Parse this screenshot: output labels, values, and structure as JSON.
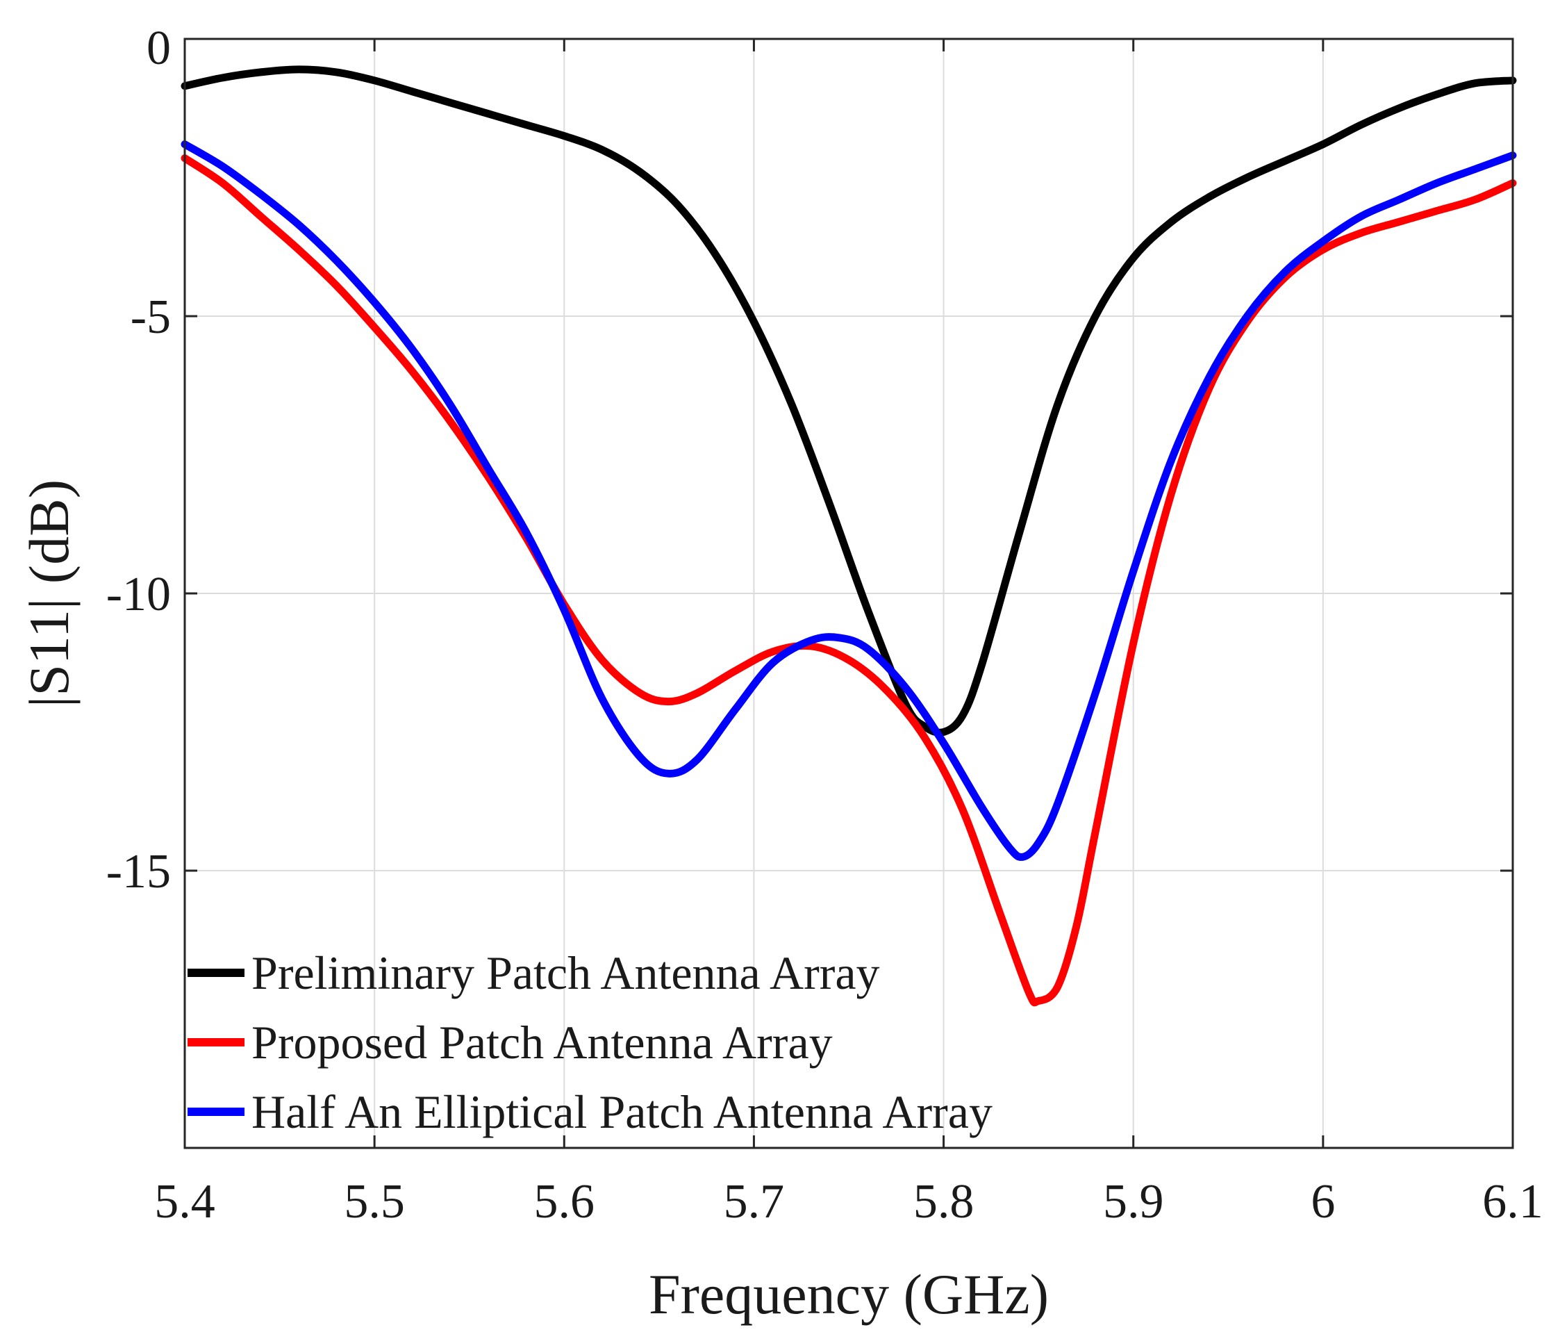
{
  "chart_data": {
    "type": "line",
    "title": "",
    "xlabel": "Frequency (GHz)",
    "ylabel": "|S11| (dB)",
    "xlim": [
      5.4,
      6.1
    ],
    "ylim": [
      -20,
      0
    ],
    "xticks": [
      5.4,
      5.5,
      5.6,
      5.7,
      5.8,
      5.9,
      6.0,
      6.1
    ],
    "xtick_labels": [
      "5.4",
      "5.5",
      "5.6",
      "5.7",
      "5.8",
      "5.9",
      "6",
      "6.1"
    ],
    "yticks": [
      0,
      -5,
      -10,
      -15
    ],
    "ytick_labels": [
      "0",
      "-5",
      "-10",
      "-15"
    ],
    "grid": true,
    "legend_position": "bottom-left",
    "series": [
      {
        "name": "Preliminary Patch Antenna Array",
        "color": "#000000",
        "x": [
          5.4,
          5.42,
          5.44,
          5.46,
          5.48,
          5.5,
          5.52,
          5.54,
          5.56,
          5.58,
          5.6,
          5.62,
          5.64,
          5.66,
          5.68,
          5.7,
          5.72,
          5.74,
          5.76,
          5.78,
          5.79,
          5.8,
          5.81,
          5.82,
          5.84,
          5.86,
          5.88,
          5.9,
          5.92,
          5.94,
          5.96,
          5.98,
          6.0,
          6.02,
          6.04,
          6.06,
          6.08,
          6.1
        ],
        "y": [
          -0.85,
          -0.7,
          -0.6,
          -0.55,
          -0.6,
          -0.75,
          -0.95,
          -1.15,
          -1.35,
          -1.55,
          -1.75,
          -2.0,
          -2.4,
          -3.0,
          -3.9,
          -5.1,
          -6.6,
          -8.4,
          -10.3,
          -12.0,
          -12.4,
          -12.5,
          -12.2,
          -11.3,
          -8.9,
          -6.6,
          -5.0,
          -3.95,
          -3.3,
          -2.85,
          -2.5,
          -2.2,
          -1.9,
          -1.55,
          -1.25,
          -1.0,
          -0.8,
          -0.75
        ]
      },
      {
        "name": "Proposed Patch Antenna Array",
        "color": "#ff0000",
        "x": [
          5.4,
          5.42,
          5.44,
          5.46,
          5.48,
          5.5,
          5.52,
          5.54,
          5.56,
          5.58,
          5.6,
          5.62,
          5.64,
          5.655,
          5.67,
          5.69,
          5.71,
          5.73,
          5.75,
          5.77,
          5.79,
          5.81,
          5.83,
          5.845,
          5.85,
          5.86,
          5.87,
          5.88,
          5.9,
          5.92,
          5.94,
          5.96,
          5.98,
          6.0,
          6.02,
          6.04,
          6.06,
          6.08,
          6.1
        ],
        "y": [
          -2.15,
          -2.6,
          -3.2,
          -3.8,
          -4.45,
          -5.2,
          -6.0,
          -6.9,
          -7.9,
          -9.0,
          -10.2,
          -11.2,
          -11.8,
          -11.95,
          -11.8,
          -11.4,
          -11.05,
          -10.95,
          -11.2,
          -11.75,
          -12.6,
          -13.9,
          -15.8,
          -17.2,
          -17.35,
          -17.1,
          -16.0,
          -14.3,
          -10.9,
          -8.2,
          -6.3,
          -5.1,
          -4.3,
          -3.8,
          -3.5,
          -3.3,
          -3.1,
          -2.9,
          -2.6
        ]
      },
      {
        "name": "Half An Elliptical Patch Antenna Array",
        "color": "#0000ff",
        "x": [
          5.4,
          5.42,
          5.44,
          5.46,
          5.48,
          5.5,
          5.52,
          5.54,
          5.56,
          5.58,
          5.6,
          5.62,
          5.64,
          5.655,
          5.67,
          5.69,
          5.71,
          5.73,
          5.745,
          5.76,
          5.78,
          5.8,
          5.82,
          5.835,
          5.842,
          5.85,
          5.86,
          5.88,
          5.9,
          5.92,
          5.94,
          5.96,
          5.98,
          6.0,
          6.02,
          6.04,
          6.06,
          6.08,
          6.1
        ],
        "y": [
          -1.9,
          -2.3,
          -2.8,
          -3.35,
          -4.0,
          -4.75,
          -5.6,
          -6.6,
          -7.75,
          -8.9,
          -10.3,
          -11.9,
          -12.95,
          -13.25,
          -13.0,
          -12.1,
          -11.25,
          -10.85,
          -10.8,
          -11.0,
          -11.7,
          -12.7,
          -13.85,
          -14.6,
          -14.75,
          -14.5,
          -13.8,
          -11.8,
          -9.6,
          -7.6,
          -6.1,
          -5.0,
          -4.2,
          -3.65,
          -3.2,
          -2.9,
          -2.6,
          -2.35,
          -2.1
        ]
      }
    ]
  }
}
